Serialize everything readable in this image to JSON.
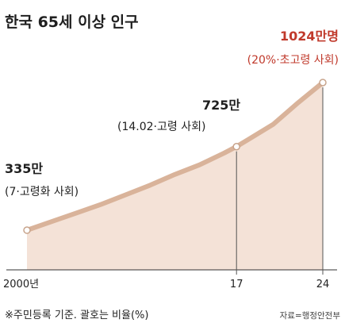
{
  "title": "한국 65세 이상 인구",
  "footnote": "※주민등록 기준. 괄호는 비율(%)",
  "source": "자료=행정안전부",
  "colors": {
    "area": "#f4e2d7",
    "line": "#d9b39a",
    "point_fill": "#ffffff",
    "highlight": "#c0392b",
    "text": "#1f1f1f"
  },
  "chart_data": {
    "type": "area",
    "x_tick_labels": [
      "2000년",
      "17",
      "24"
    ],
    "x": [
      2000,
      2002,
      2004,
      2006,
      2008,
      2010,
      2012,
      2014,
      2016,
      2017,
      2018,
      2020,
      2022,
      2024
    ],
    "y": [
      335,
      375,
      415,
      455,
      500,
      545,
      595,
      640,
      695,
      725,
      760,
      830,
      930,
      1024
    ],
    "labeled_points": [
      {
        "x": 2000,
        "value_label": "335만",
        "note": "(7·고령화 사회)",
        "highlight": false
      },
      {
        "x": 2017,
        "value_label": "725만",
        "note": "(14.02·고령 사회)",
        "highlight": false
      },
      {
        "x": 2024,
        "value_label": "1024만명",
        "note": "(20%·초고령 사회)",
        "highlight": true
      }
    ],
    "xlim": [
      2000,
      2024
    ],
    "ylim": [
      0,
      1024
    ],
    "grid": false
  }
}
